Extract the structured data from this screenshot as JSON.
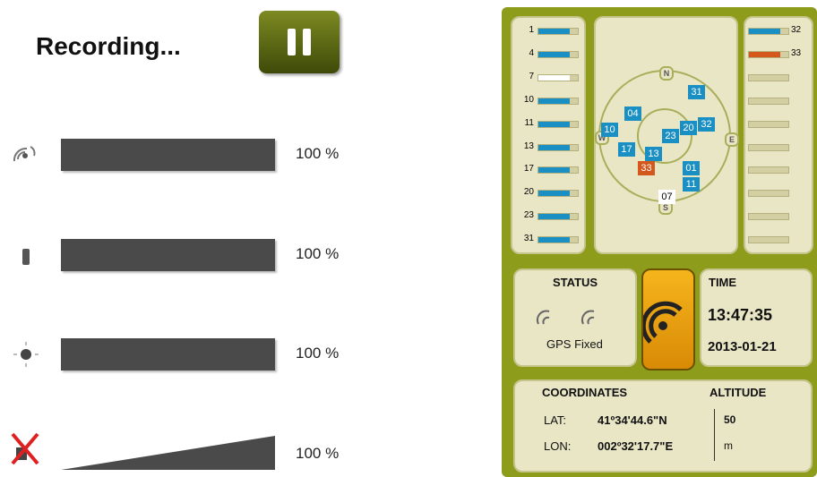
{
  "recorder": {
    "title": "Recording...",
    "rows": [
      {
        "label": "100 %"
      },
      {
        "label": "100 %"
      },
      {
        "label": "100 %"
      },
      {
        "label": "100 %"
      }
    ]
  },
  "gps": {
    "left_sats": [
      {
        "label": "1",
        "color": "#1a8fc4"
      },
      {
        "label": "4",
        "color": "#1a8fc4"
      },
      {
        "label": "7",
        "color": "#ffffff"
      },
      {
        "label": "10",
        "color": "#1a8fc4"
      },
      {
        "label": "11",
        "color": "#1a8fc4"
      },
      {
        "label": "13",
        "color": "#1a8fc4"
      },
      {
        "label": "17",
        "color": "#1a8fc4"
      },
      {
        "label": "20",
        "color": "#1a8fc4"
      },
      {
        "label": "23",
        "color": "#1a8fc4"
      },
      {
        "label": "31",
        "color": "#1a8fc4"
      }
    ],
    "right_sats": [
      {
        "label": "32",
        "color": "#1a8fc4"
      },
      {
        "label": "33",
        "color": "#d4581c"
      }
    ],
    "compass": [
      "N",
      "E",
      "S",
      "W"
    ],
    "sky": [
      {
        "label": "31",
        "color": "#1a8fc4"
      },
      {
        "label": "04",
        "color": "#1a8fc4"
      },
      {
        "label": "10",
        "color": "#1a8fc4"
      },
      {
        "label": "20",
        "color": "#1a8fc4"
      },
      {
        "label": "32",
        "color": "#1a8fc4"
      },
      {
        "label": "23",
        "color": "#1a8fc4"
      },
      {
        "label": "17",
        "color": "#1a8fc4"
      },
      {
        "label": "13",
        "color": "#1a8fc4"
      },
      {
        "label": "33",
        "color": "#d4581c"
      },
      {
        "label": "01",
        "color": "#1a8fc4"
      },
      {
        "label": "11",
        "color": "#1a8fc4"
      },
      {
        "label": "07",
        "color": "#ffffff"
      }
    ],
    "status": {
      "title": "STATUS",
      "text": "GPS Fixed"
    },
    "time": {
      "title": "TIME",
      "time": "13:47:35",
      "date": "2013-01-21"
    },
    "coords": {
      "title": "COORDINATES",
      "alt_title": "ALTITUDE",
      "lat_label": "LAT:",
      "lat": "41º34'44.6\"N",
      "lon_label": "LON:",
      "lon": "002º32'17.7\"E",
      "alt": "50",
      "alt_unit": "m"
    }
  }
}
